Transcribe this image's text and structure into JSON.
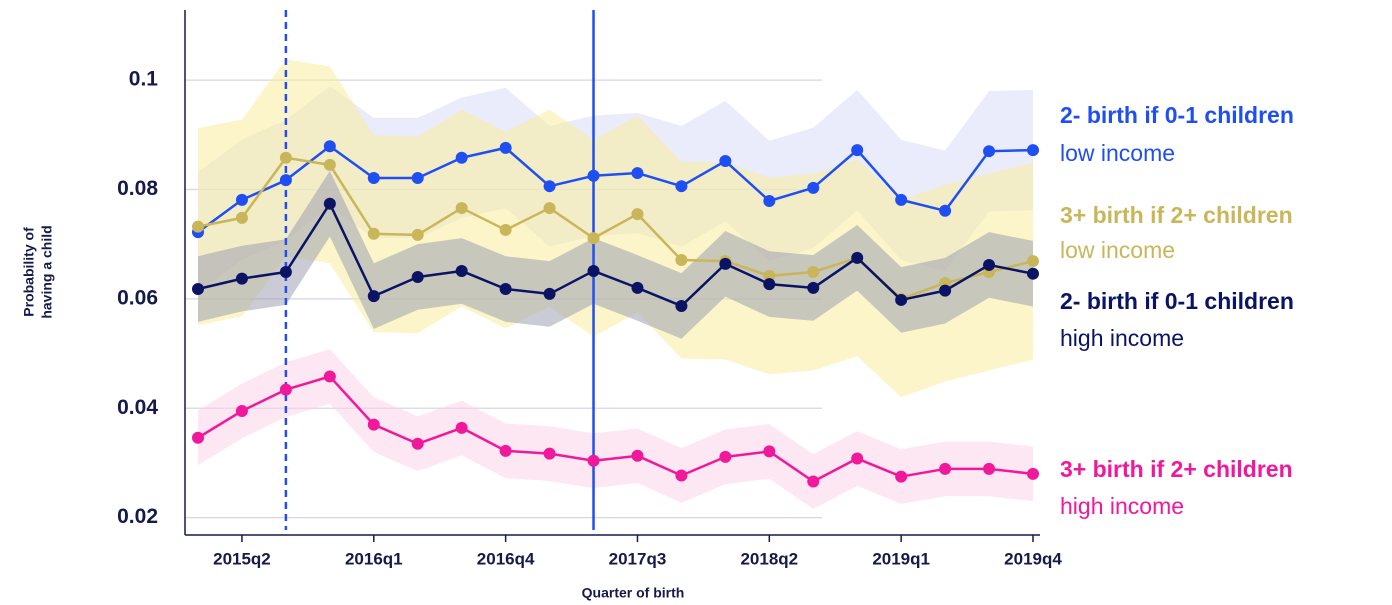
{
  "chart_data": {
    "type": "line",
    "xlabel": "Quarter of birth",
    "ylabel": [
      "Probability of",
      "having a child"
    ],
    "categories": [
      null,
      "2015q2",
      null,
      null,
      "2016q1",
      null,
      null,
      "2016q4",
      null,
      null,
      "2017q3",
      null,
      null,
      "2018q2",
      null,
      null,
      "2019q1",
      null,
      null,
      "2019q4"
    ],
    "ylim": [
      0.017,
      0.113
    ],
    "yticks": [
      0.02,
      0.04,
      0.06,
      0.08,
      0.1
    ],
    "grid": true,
    "vlines": [
      {
        "x": 2,
        "dashed": true,
        "color": "#1f4ff2"
      },
      {
        "x": 9,
        "dashed": false,
        "color": "#1f4ff2"
      }
    ],
    "series": [
      {
        "name": "2- birth if 0-1 children",
        "group": "low income",
        "color": "#1f4ff2",
        "band_color": "#d9ddf7",
        "values": [
          0.0722,
          0.0781,
          0.0817,
          0.0879,
          0.0821,
          0.0821,
          0.0858,
          0.0876,
          0.0806,
          0.0825,
          0.083,
          0.0806,
          0.0852,
          0.0779,
          0.0803,
          0.0872,
          0.0781,
          0.0761,
          0.087,
          0.0872
        ],
        "upper": [
          0.0832,
          0.0891,
          0.0927,
          0.0989,
          0.0931,
          0.0931,
          0.0968,
          0.0986,
          0.0916,
          0.0935,
          0.094,
          0.0916,
          0.0962,
          0.0889,
          0.0913,
          0.0982,
          0.0891,
          0.0871,
          0.098,
          0.0982
        ],
        "lower": [
          0.0612,
          0.0671,
          0.0707,
          0.0769,
          0.0711,
          0.0711,
          0.0748,
          0.0766,
          0.0696,
          0.0715,
          0.072,
          0.0696,
          0.0742,
          0.0669,
          0.0693,
          0.0762,
          0.0671,
          0.0651,
          0.076,
          0.0762
        ]
      },
      {
        "name": "3+ birth if 2+ children",
        "group": "low income",
        "color": "#c9b65a",
        "band_color": "#f7ec9c",
        "values": [
          0.0732,
          0.0748,
          0.0858,
          0.0845,
          0.0719,
          0.0717,
          0.0766,
          0.0726,
          0.0766,
          0.0711,
          0.0755,
          0.0671,
          0.0669,
          0.0642,
          0.0649,
          0.0675,
          0.06,
          0.0629,
          0.0649,
          0.0669
        ],
        "upper": [
          0.0912,
          0.0928,
          0.1038,
          0.1025,
          0.0899,
          0.0897,
          0.0946,
          0.0906,
          0.0946,
          0.0891,
          0.0935,
          0.0851,
          0.0849,
          0.0822,
          0.0829,
          0.0855,
          0.078,
          0.0809,
          0.0829,
          0.0849
        ],
        "lower": [
          0.0552,
          0.0568,
          0.0678,
          0.0665,
          0.0539,
          0.0537,
          0.0586,
          0.0546,
          0.0586,
          0.0531,
          0.0575,
          0.0491,
          0.0489,
          0.0462,
          0.0469,
          0.0495,
          0.042,
          0.0449,
          0.0469,
          0.0489
        ]
      },
      {
        "name": "2- birth if 0-1 children",
        "group": "high income",
        "color": "#0b1464",
        "band_color": "#9ea0b0",
        "values": [
          0.0618,
          0.0637,
          0.0649,
          0.0774,
          0.0605,
          0.064,
          0.0651,
          0.0618,
          0.0609,
          0.0651,
          0.062,
          0.0587,
          0.0664,
          0.0627,
          0.062,
          0.0675,
          0.0598,
          0.0615,
          0.0662,
          0.0646
        ],
        "upper": [
          0.0678,
          0.0697,
          0.0709,
          0.0834,
          0.0665,
          0.07,
          0.0711,
          0.0678,
          0.0669,
          0.0711,
          0.068,
          0.0647,
          0.0724,
          0.0687,
          0.068,
          0.0735,
          0.0658,
          0.0675,
          0.0722,
          0.0706
        ],
        "lower": [
          0.0558,
          0.0577,
          0.0589,
          0.0714,
          0.0545,
          0.058,
          0.0591,
          0.0558,
          0.0549,
          0.0591,
          0.056,
          0.0527,
          0.0604,
          0.0567,
          0.056,
          0.0615,
          0.0538,
          0.0555,
          0.0602,
          0.0586
        ]
      },
      {
        "name": "3+ birth if 2+ children",
        "group": "high income",
        "color": "#f0189b",
        "band_color": "#fbd3e8",
        "values": [
          0.0346,
          0.0395,
          0.0434,
          0.0458,
          0.037,
          0.0335,
          0.0364,
          0.0322,
          0.0317,
          0.0304,
          0.0313,
          0.0277,
          0.0311,
          0.0321,
          0.0266,
          0.0308,
          0.0275,
          0.0289,
          0.0289,
          0.028
        ],
        "upper": [
          0.0396,
          0.0445,
          0.0484,
          0.0508,
          0.042,
          0.0385,
          0.0414,
          0.0372,
          0.0367,
          0.0354,
          0.0363,
          0.0327,
          0.0361,
          0.0371,
          0.0316,
          0.0358,
          0.0325,
          0.0339,
          0.0339,
          0.033
        ],
        "lower": [
          0.0296,
          0.0345,
          0.0384,
          0.0408,
          0.032,
          0.0285,
          0.0314,
          0.0272,
          0.0267,
          0.0254,
          0.0263,
          0.0227,
          0.0261,
          0.0271,
          0.0216,
          0.0258,
          0.0225,
          0.0239,
          0.0239,
          0.023
        ]
      }
    ]
  }
}
